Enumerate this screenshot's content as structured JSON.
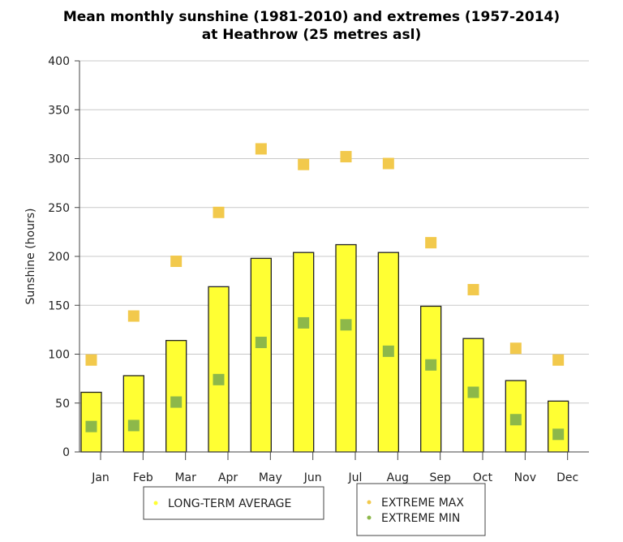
{
  "chart_data": {
    "type": "bar",
    "title": "Mean monthly sunshine (1981-2010) and extremes (1957-2014)",
    "subtitle": "at Heathrow (25 metres asl)",
    "xlabel": "",
    "ylabel": "Sunshine (hours)",
    "ylim": [
      0,
      400
    ],
    "yticks": [
      0,
      50,
      100,
      150,
      200,
      250,
      300,
      350,
      400
    ],
    "grid": true,
    "legend_placement": "bottom",
    "categories": [
      "Jan",
      "Feb",
      "Mar",
      "Apr",
      "May",
      "Jun",
      "Jul",
      "Aug",
      "Sep",
      "Oct",
      "Nov",
      "Dec"
    ],
    "series": [
      {
        "name": "LONG-TERM AVERAGE",
        "kind": "bar",
        "color": "#ffff33",
        "values": [
          61,
          78,
          114,
          169,
          198,
          204,
          212,
          204,
          149,
          116,
          73,
          52
        ]
      },
      {
        "name": "EXTREME MAX",
        "kind": "marker",
        "color": "#f2c94c",
        "values": [
          94,
          139,
          195,
          245,
          310,
          294,
          302,
          295,
          214,
          166,
          106,
          94
        ]
      },
      {
        "name": "EXTREME MIN",
        "kind": "marker",
        "color": "#8db84a",
        "values": [
          26,
          27,
          51,
          74,
          112,
          132,
          130,
          103,
          89,
          61,
          33,
          18
        ]
      }
    ]
  }
}
